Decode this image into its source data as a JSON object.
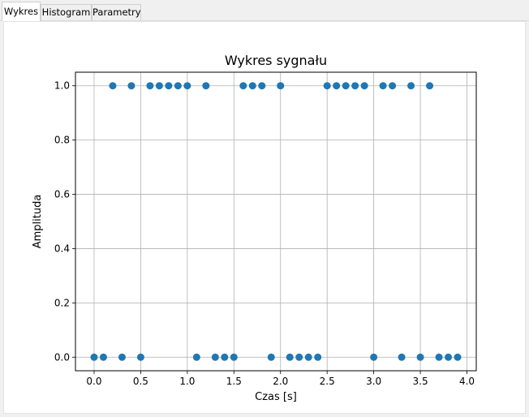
{
  "tabs": [
    {
      "label": "Wykres",
      "active": true
    },
    {
      "label": "Histogram",
      "active": false
    },
    {
      "label": "Parametry",
      "active": false
    }
  ],
  "colors": {
    "marker": "#1f77b4",
    "grid": "#b0b0b0",
    "axes": "#000000"
  },
  "chart_data": {
    "type": "scatter",
    "title": "Wykres sygnału",
    "xlabel": "Czas [s]",
    "ylabel": "Amplituda",
    "xlim": [
      -0.2,
      4.1
    ],
    "ylim": [
      -0.05,
      1.05
    ],
    "xticks": [
      0.0,
      0.5,
      1.0,
      1.5,
      2.0,
      2.5,
      3.0,
      3.5,
      4.0
    ],
    "xtick_labels": [
      "0.0",
      "0.5",
      "1.0",
      "1.5",
      "2.0",
      "2.5",
      "3.0",
      "3.5",
      "4.0"
    ],
    "yticks": [
      0.0,
      0.2,
      0.4,
      0.6,
      0.8,
      1.0
    ],
    "ytick_labels": [
      "0.0",
      "0.2",
      "0.4",
      "0.6",
      "0.8",
      "1.0"
    ],
    "grid": true,
    "x": [
      0.0,
      0.1,
      0.2,
      0.3,
      0.4,
      0.5,
      0.6,
      0.7,
      0.8,
      0.9,
      1.0,
      1.1,
      1.2,
      1.3,
      1.4,
      1.5,
      1.6,
      1.7,
      1.8,
      1.9,
      2.0,
      2.1,
      2.2,
      2.3,
      2.4,
      2.5,
      2.6,
      2.7,
      2.8,
      2.9,
      3.0,
      3.1,
      3.2,
      3.3,
      3.4,
      3.5,
      3.6,
      3.7,
      3.8,
      3.9
    ],
    "y": [
      0,
      0,
      1,
      0,
      1,
      0,
      1,
      1,
      1,
      1,
      1,
      0,
      1,
      0,
      0,
      0,
      1,
      1,
      1,
      0,
      1,
      0,
      0,
      0,
      0,
      1,
      1,
      1,
      1,
      1,
      0,
      1,
      1,
      0,
      1,
      0,
      1,
      0,
      0,
      0
    ]
  }
}
